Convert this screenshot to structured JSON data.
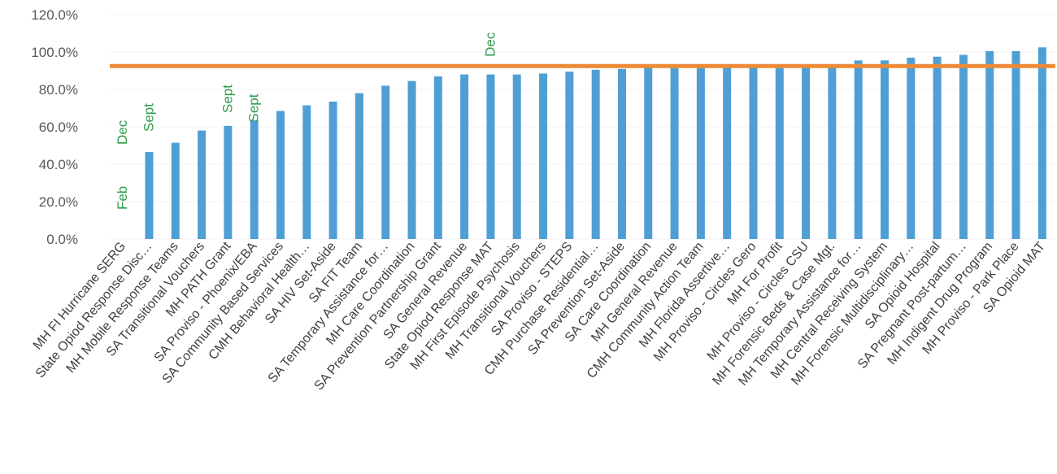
{
  "chart_data": {
    "type": "bar",
    "title": "",
    "xlabel": "",
    "ylabel": "",
    "ylim": [
      0,
      120
    ],
    "yticks": [
      "0.0%",
      "20.0%",
      "40.0%",
      "60.0%",
      "80.0%",
      "100.0%",
      "120.0%"
    ],
    "ytick_values": [
      0,
      20,
      40,
      60,
      80,
      100,
      120
    ],
    "categories": [
      "MH FI Hurricane SERG",
      "State Opiod Response Disc…",
      "MH Mobile Response Teams",
      "SA Transitional Vouchers",
      "MH PATH Grant",
      "SA Proviso - Phoenix/EBA",
      "SA Community Based Services",
      "CMH Behavioral Health…",
      "SA HIV Set-Aside",
      "SA FIT Team",
      "SA Temporary Assistance for…",
      "MH Care Coordination",
      "SA Prevention Partnership Grant",
      "SA General Revenue",
      "State Opiod Response MAT",
      "MH First Episode Psychosis",
      "MH Transitional Vouchers",
      "SA Proviso - STEPS",
      "CMH Purchase Residential…",
      "SA Prevention Set-Aside",
      "SA Care Coordination",
      "MH General Revenue",
      "CMH Community Action Team",
      "MH Florida Assertive…",
      "MH Proviso - Circles Gero",
      "MH For Profit",
      "MH Proviso - Circles CSU",
      "MH Forensic Beds & Case Mgt.",
      "MH Temporary Assistance for…",
      "MH Central Receiving System",
      "MH Forensic Multidisciplinary…",
      "SA Opioid Hospital",
      "SA Pregnant Post-partum…",
      "MH Indigent Drug Program",
      "MH Proviso - Park Place",
      "SA Opioid MAT"
    ],
    "values": [
      0,
      46.5,
      51.5,
      58,
      60.5,
      63.5,
      68.5,
      71.5,
      73.5,
      78,
      82,
      84.5,
      87,
      88,
      88,
      88,
      88.5,
      89.5,
      90.5,
      91,
      91.5,
      91.5,
      91.5,
      91.5,
      91.5,
      91.5,
      91.5,
      91.5,
      95.5,
      95.5,
      97,
      97.5,
      98.5,
      100.5,
      100.5,
      102.5
    ],
    "target_line": 92.5,
    "bar_color": "#4f9fd4",
    "target_color": "#ed8a35",
    "annotation_color": "#2e9b4a",
    "annotations": [
      {
        "text": "Feb",
        "category_index": 0,
        "value": 22
      },
      {
        "text": "Dec",
        "category_index": 0,
        "value": 57
      },
      {
        "text": "Sept",
        "category_index": 1,
        "value": 65
      },
      {
        "text": "Sept",
        "category_index": 4,
        "value": 75
      },
      {
        "text": "Sept",
        "category_index": 5,
        "value": 70
      },
      {
        "text": "Dec",
        "category_index": 14,
        "value": 104
      }
    ]
  }
}
